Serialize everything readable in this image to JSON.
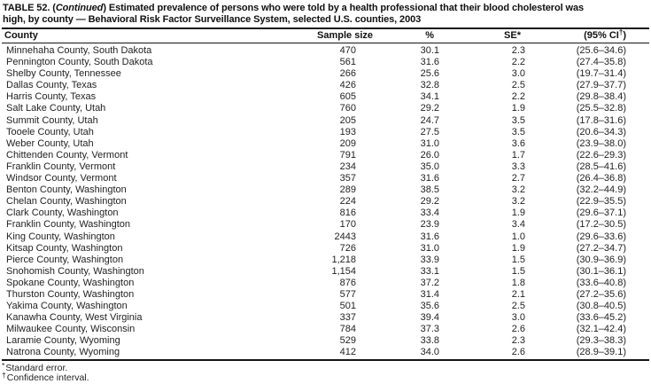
{
  "title": {
    "part1": "TABLE 52. (",
    "continued": "Continued",
    "part2": ") Estimated prevalence of persons who were told by a health professional that their blood cholesterol was",
    "line2": "high, by county — Behavioral Risk Factor Surveillance System, selected U.S. counties, 2003"
  },
  "table": {
    "columns": {
      "county": "County",
      "sample_size": "Sample size",
      "percent": "%",
      "se": "SE*",
      "ci_prefix": "(95% CI",
      "ci_dagger": "†",
      "ci_suffix": ")"
    },
    "rows": [
      [
        "Minnehaha County, South Dakota",
        "470",
        "30.1",
        "2.3",
        "(25.6–34.6)"
      ],
      [
        "Pennington County, South Dakota",
        "561",
        "31.6",
        "2.2",
        "(27.4–35.8)"
      ],
      [
        "Shelby County, Tennessee",
        "266",
        "25.6",
        "3.0",
        "(19.7–31.4)"
      ],
      [
        "Dallas County, Texas",
        "426",
        "32.8",
        "2.5",
        "(27.9–37.7)"
      ],
      [
        "Harris County, Texas",
        "605",
        "34.1",
        "2.2",
        "(29.8–38.4)"
      ],
      [
        "Salt Lake County, Utah",
        "760",
        "29.2",
        "1.9",
        "(25.5–32.8)"
      ],
      [
        "Summit County, Utah",
        "205",
        "24.7",
        "3.5",
        "(17.8–31.6)"
      ],
      [
        "Tooele County, Utah",
        "193",
        "27.5",
        "3.5",
        "(20.6–34.3)"
      ],
      [
        "Weber County, Utah",
        "209",
        "31.0",
        "3.6",
        "(23.9–38.0)"
      ],
      [
        "Chittenden County, Vermont",
        "791",
        "26.0",
        "1.7",
        "(22.6–29.3)"
      ],
      [
        "Franklin County, Vermont",
        "234",
        "35.0",
        "3.3",
        "(28.5–41.6)"
      ],
      [
        "Windsor County, Vermont",
        "357",
        "31.6",
        "2.7",
        "(26.4–36.8)"
      ],
      [
        "Benton County, Washington",
        "289",
        "38.5",
        "3.2",
        "(32.2–44.9)"
      ],
      [
        "Chelan County, Washington",
        "224",
        "29.2",
        "3.2",
        "(22.9–35.5)"
      ],
      [
        "Clark County, Washington",
        "816",
        "33.4",
        "1.9",
        "(29.6–37.1)"
      ],
      [
        "Franklin County, Washington",
        "170",
        "23.9",
        "3.4",
        "(17.2–30.5)"
      ],
      [
        "King County, Washington",
        "2443",
        "31.6",
        "1.0",
        "(29.6–33.6)"
      ],
      [
        "Kitsap County, Washington",
        "726",
        "31.0",
        "1.9",
        "(27.2–34.7)"
      ],
      [
        "Pierce County, Washington",
        "1,218",
        "33.9",
        "1.5",
        "(30.9–36.9)"
      ],
      [
        "Snohomish County, Washington",
        "1,154",
        "33.1",
        "1.5",
        "(30.1–36.1)"
      ],
      [
        "Spokane County, Washington",
        "876",
        "37.2",
        "1.8",
        "(33.6–40.8)"
      ],
      [
        "Thurston County, Washington",
        "577",
        "31.4",
        "2.1",
        "(27.2–35.6)"
      ],
      [
        "Yakima County, Washington",
        "501",
        "35.6",
        "2.5",
        "(30.8–40.5)"
      ],
      [
        "Kanawha County, West Virginia",
        "337",
        "39.4",
        "3.0",
        "(33.6–45.2)"
      ],
      [
        "Milwaukee County, Wisconsin",
        "784",
        "37.3",
        "2.6",
        "(32.1–42.4)"
      ],
      [
        "Laramie County, Wyoming",
        "529",
        "33.8",
        "2.3",
        "(29.3–38.3)"
      ],
      [
        "Natrona County, Wyoming",
        "412",
        "34.0",
        "2.6",
        "(28.9–39.1)"
      ]
    ]
  },
  "footnotes": [
    {
      "marker": "*",
      "text": "Standard error."
    },
    {
      "marker": "†",
      "text": "Confidence interval."
    }
  ]
}
